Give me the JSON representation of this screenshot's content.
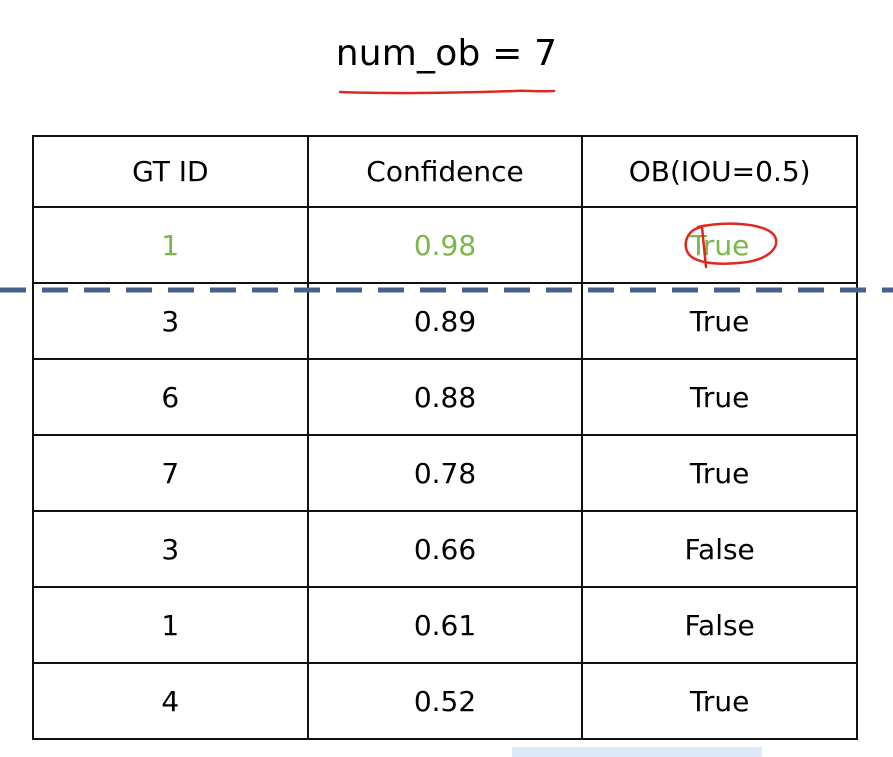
{
  "title": "num_ob = 7",
  "table": {
    "headers": {
      "gt_id": "GT ID",
      "confidence": "Confidence",
      "ob": "OB(IOU=0.5)"
    },
    "rows": [
      {
        "gt_id": "1",
        "confidence": "0.98",
        "ob": "True"
      },
      {
        "gt_id": "3",
        "confidence": "0.89",
        "ob": "True"
      },
      {
        "gt_id": "6",
        "confidence": "0.88",
        "ob": "True"
      },
      {
        "gt_id": "7",
        "confidence": "0.78",
        "ob": "True"
      },
      {
        "gt_id": "3",
        "confidence": "0.66",
        "ob": "False"
      },
      {
        "gt_id": "1",
        "confidence": "0.61",
        "ob": "False"
      },
      {
        "gt_id": "4",
        "confidence": "0.52",
        "ob": "True"
      }
    ]
  },
  "colors": {
    "highlight_text": "#7ab648",
    "annotation_red": "#e0281e",
    "threshold_line": "#46618a"
  }
}
